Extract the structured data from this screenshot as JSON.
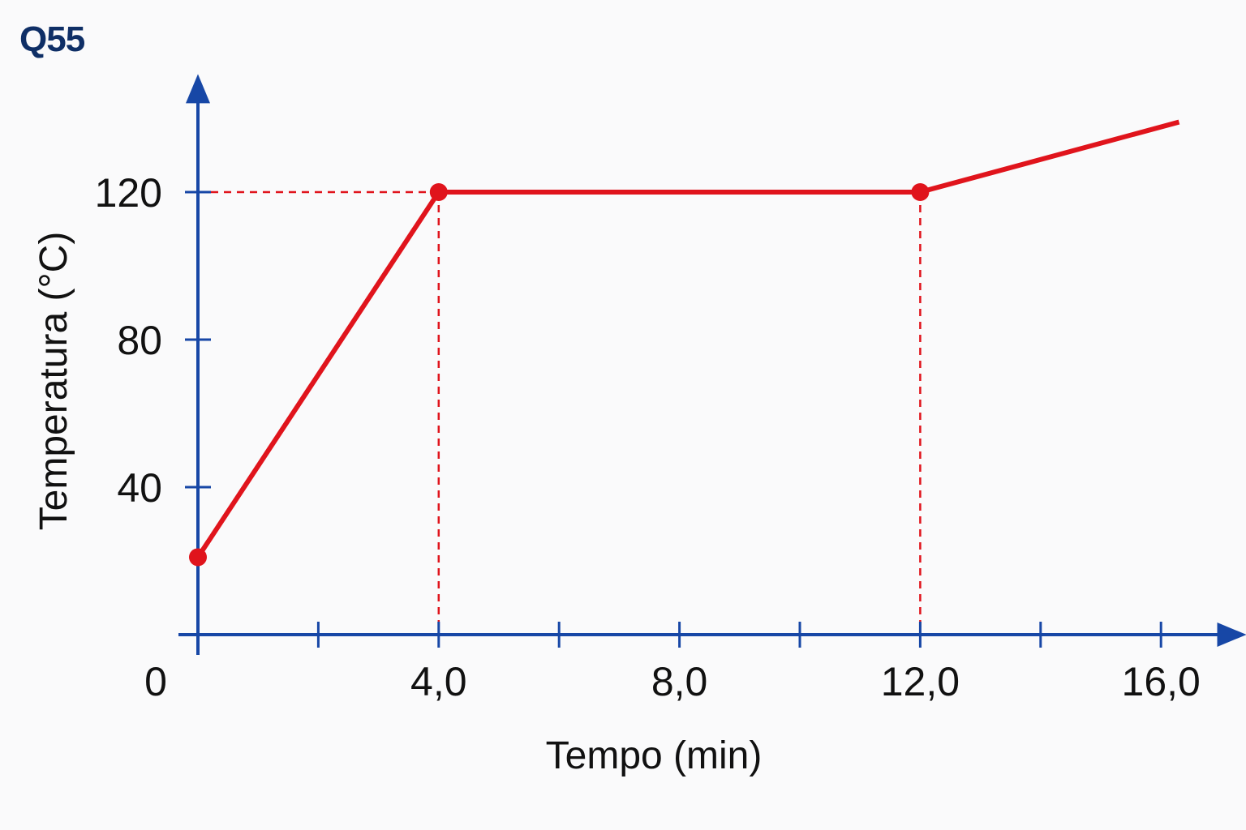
{
  "question_label": "Q55",
  "chart_data": {
    "type": "line",
    "title": "",
    "xlabel": "Tempo (min)",
    "ylabel": "Temperatura (°C)",
    "xlim": [
      0,
      17.5
    ],
    "ylim": [
      0,
      152
    ],
    "x_ticks": [
      0,
      2,
      4,
      6,
      8,
      10,
      12,
      14,
      16
    ],
    "x_tick_labels": [
      {
        "value": 0,
        "label": "0"
      },
      {
        "value": 4,
        "label": "4,0"
      },
      {
        "value": 8,
        "label": "8,0"
      },
      {
        "value": 12,
        "label": "12,0"
      },
      {
        "value": 16,
        "label": "16,0"
      }
    ],
    "y_ticks": [
      {
        "value": 40,
        "label": "40"
      },
      {
        "value": 80,
        "label": "80"
      },
      {
        "value": 120,
        "label": "120"
      }
    ],
    "series": [
      {
        "points": [
          {
            "x": 0,
            "y": 21
          },
          {
            "x": 4,
            "y": 120
          },
          {
            "x": 12,
            "y": 120
          },
          {
            "x": 16.3,
            "y": 139
          }
        ],
        "markers": [
          0,
          1,
          2
        ]
      }
    ],
    "guides": [
      {
        "x": 4,
        "y": 120
      },
      {
        "x": 12,
        "y": 120
      }
    ],
    "colors": {
      "axis": "#1747a6",
      "series": "#e0141c"
    },
    "grid": false,
    "legend": false
  }
}
